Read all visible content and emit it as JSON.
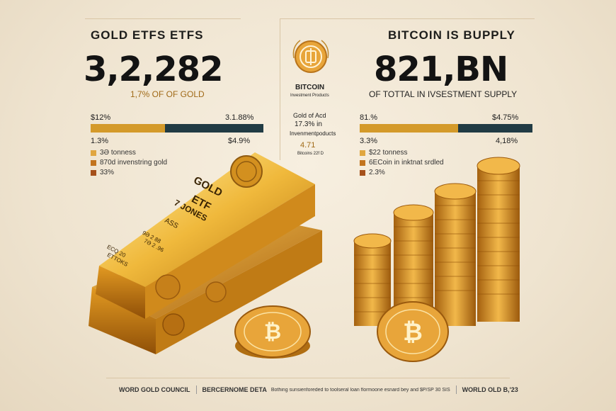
{
  "left": {
    "title": "GOLD ETFS ETFS",
    "big_number": "3,2,282",
    "subtitle": "1,7% OF OF GOLD",
    "bar": {
      "label_left_top": "$12%",
      "label_right_top": "3.1.88%",
      "label_left_bottom": "1.3%",
      "label_right_bottom": "$4.9%",
      "fill_fraction": 0.43,
      "color_fill": "#d49a2a",
      "color_rest": "#213b44"
    },
    "legend": [
      {
        "text": "3Ə tonness",
        "color": "#e0a640"
      },
      {
        "text": "870d invenstring gold",
        "color": "#c2741e"
      },
      {
        "text": "33%",
        "color": "#a5501a"
      }
    ],
    "bar_engraving": {
      "line1": "GOLD",
      "line2": "ETF",
      "line3": "7 JONES",
      "line4": "ASS",
      "line5": "9Ə 2 88",
      "line6": "7Ə 2 .96",
      "line7": "ECQ 20",
      "line8": "ETTOKS"
    }
  },
  "center": {
    "label_top": "BITCOIN",
    "label_top_sub": "Investment Products",
    "label_mid1": "Gold of Acd",
    "label_mid2": "17.3%  in",
    "label_mid3": "Invenmentpoducts",
    "label_mid4": "4.71",
    "label_mid5": "Bitcoins 22f D"
  },
  "right": {
    "title": "BITCOIN IS BUPPLY",
    "big_number": "821,BN",
    "subtitle": "OF TOTTAL   IN IVSESTMENT SUPPLY",
    "bar": {
      "label_left_top": "81.%",
      "label_right_top": "$4.75%",
      "label_left_bottom": "3.3%",
      "label_right_bottom": "4,18%",
      "fill_fraction": 0.57,
      "color_fill": "#d49a2a",
      "color_rest": "#213b44"
    },
    "legend": [
      {
        "text": "$22 tonness",
        "color": "#e0a640"
      },
      {
        "text": "6ECoin in inktnat srdled",
        "color": "#c2741e"
      },
      {
        "text": "2.3%",
        "color": "#a5501a"
      }
    ]
  },
  "footer": {
    "item1": "WORD GOLD COUNCIL",
    "item2": "BERCERNOME DETA",
    "item3": "Bothing sunsienforeded to toolseral loan flormoone esnard bey and $P/SP 30 SIS",
    "item4": "WORLD OLD B,'23"
  },
  "colors": {
    "gold": "#d49a2a",
    "navy": "#213b44",
    "ink": "#131313"
  }
}
